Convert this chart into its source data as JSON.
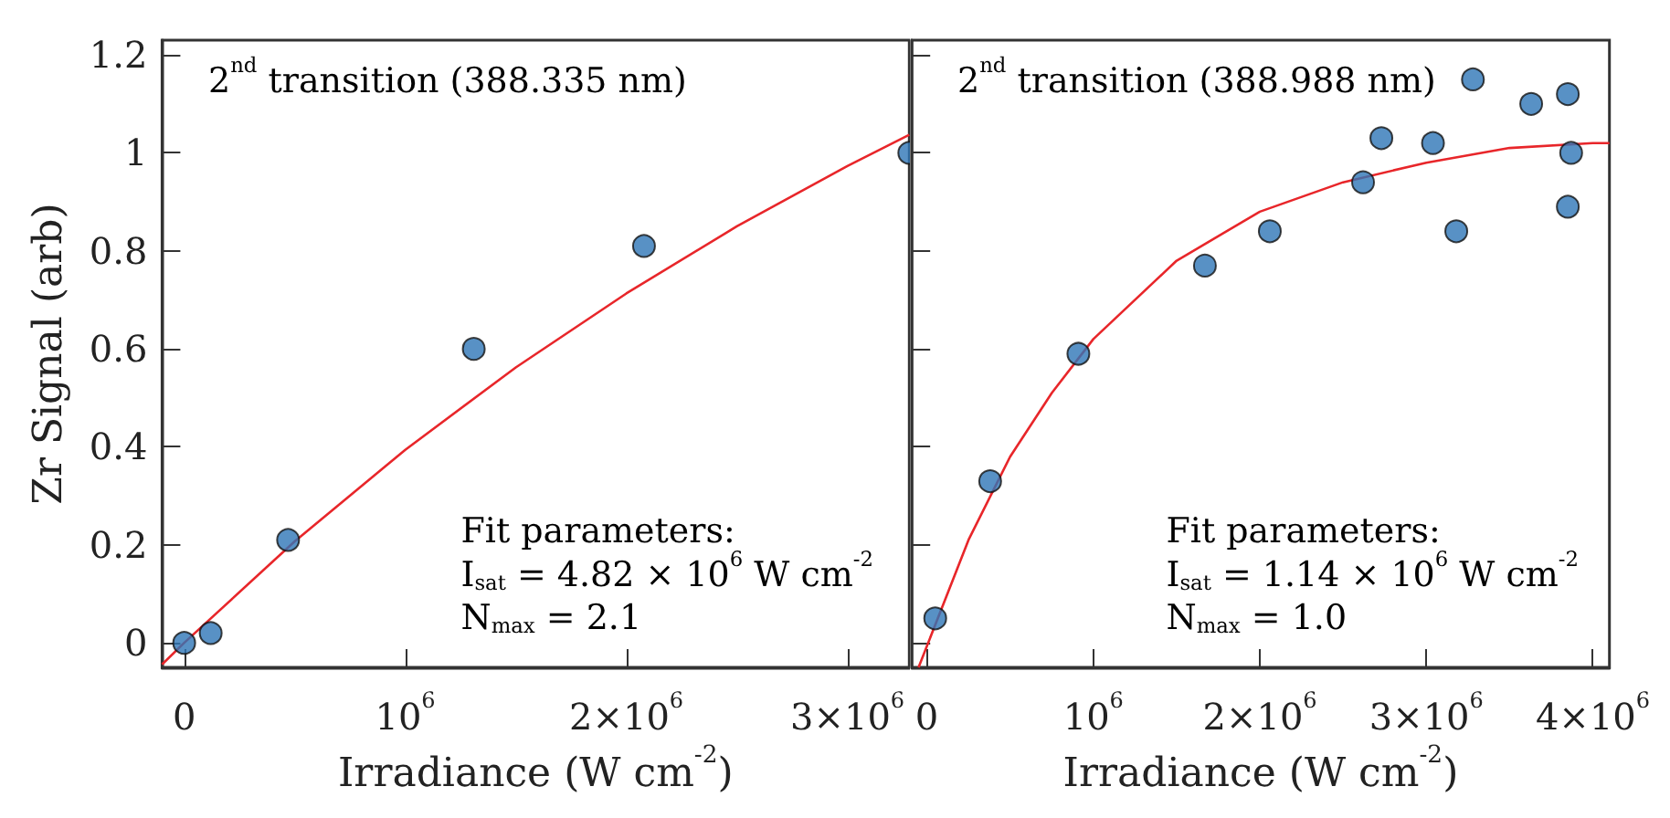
{
  "chart_data": [
    {
      "type": "scatter",
      "xlabel": "Irradiance (W cm$^{-2}$)",
      "ylabel": "Zr Signal (arb)",
      "annotations": [
        "2$^{nd}$ transition (388.335 nm)",
        "Fit parameters:\nI$_{sat}$ = 4.82 × 10$^{6}$ W cm$^{-2}$\nN$_{max}$ = 2.1"
      ],
      "xlim": [
        -100000,
        3280000
      ],
      "ylim": [
        -0.05,
        1.23
      ],
      "xticks": [
        0,
        {
          "value": 1000000,
          "label": "10$^{6}$"
        },
        {
          "value": 2000000,
          "label": "2×10$^{6}$"
        },
        {
          "value": 3000000,
          "label": "3×10$^{6}$"
        }
      ],
      "yticks": [
        0,
        0.2,
        0.4,
        0.6,
        0.8,
        1,
        1.2
      ],
      "series": [
        {
          "marker": "circle",
          "color": "#2e75b6",
          "x": [
            0,
            120000,
            470000,
            1310000,
            2080000,
            3280000
          ],
          "values": [
            0,
            0.02,
            0.21,
            0.6,
            0.81,
            1.0
          ]
        },
        {
          "type": "line",
          "color": "#e8262a",
          "x": [
            -100000,
            0,
            500000,
            1000000,
            1500000,
            2000000,
            2500000,
            3000000,
            3280000
          ],
          "values": [
            -0.044,
            0,
            0.207,
            0.394,
            0.562,
            0.713,
            0.85,
            0.973,
            1.037
          ]
        }
      ]
    },
    {
      "type": "scatter",
      "xlabel": "Irradiance (W cm$^{-2}$)",
      "annotations": [
        "2$^{nd}$ transition (388.988 nm)",
        "Fit parameters:\nI$_{sat}$ = 1.14 × 10$^{6}$ W cm$^{-2}$\nN$_{max}$ = 1.0"
      ],
      "xlim": [
        -90000,
        4100000
      ],
      "ylim": [
        -0.05,
        1.23
      ],
      "xticks": [
        0,
        {
          "value": 1000000,
          "label": "10$^{6}$"
        },
        {
          "value": 2000000,
          "label": "2×10$^{6}$"
        },
        {
          "value": 3000000,
          "label": "3×10$^{6}$"
        },
        {
          "value": 4000000,
          "label": "4×10$^{6}$"
        }
      ],
      "yticks": [
        0,
        0.2,
        0.4,
        0.6,
        0.8,
        1,
        1.2
      ],
      "tick_labels": "x",
      "series": [
        {
          "marker": "circle",
          "color": "#2e75b6",
          "x": [
            50000,
            380000,
            910000,
            1670000,
            2060000,
            2620000,
            2730000,
            3040000,
            3180000,
            3280000,
            3630000,
            3850000,
            3870000,
            3850000
          ],
          "values": [
            0.05,
            0.33,
            0.59,
            0.77,
            0.84,
            0.94,
            1.03,
            1.02,
            0.84,
            1.15,
            1.1,
            1.12,
            1.0,
            0.89
          ]
        },
        {
          "type": "line",
          "color": "#e8262a",
          "x": [
            -50000,
            250000,
            500000,
            750000,
            1000000,
            1500000,
            2000000,
            2500000,
            3000000,
            3500000,
            4000000,
            4100000
          ],
          "values": [
            -0.05,
            0.21,
            0.38,
            0.51,
            0.62,
            0.78,
            0.88,
            0.94,
            0.98,
            1.01,
            1.02,
            1.02
          ]
        }
      ]
    }
  ]
}
